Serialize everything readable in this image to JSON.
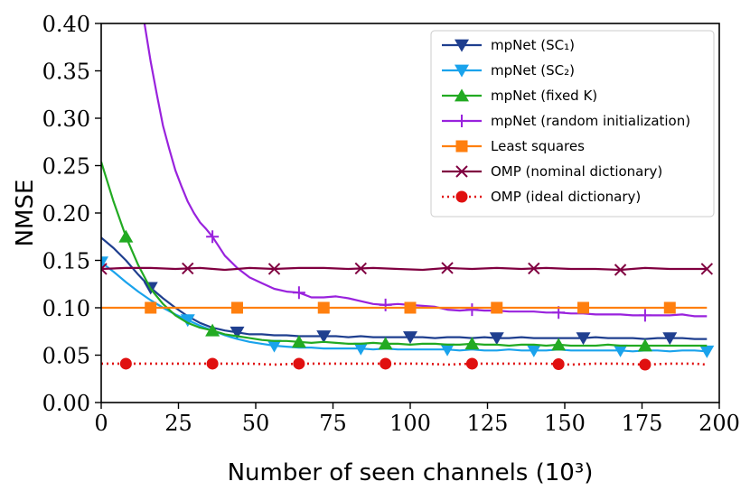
{
  "chart_data": {
    "type": "line",
    "xlabel": "Number of seen channels (10³)",
    "ylabel": "NMSE",
    "xlim": [
      0,
      200
    ],
    "ylim": [
      0,
      0.4
    ],
    "xticks": [
      "0",
      "25",
      "50",
      "75",
      "100",
      "125",
      "150",
      "175",
      "200"
    ],
    "yticks": [
      "0.00",
      "0.05",
      "0.10",
      "0.15",
      "0.20",
      "0.25",
      "0.30",
      "0.35",
      "0.40"
    ],
    "legend_position": "top-right",
    "grid": false,
    "series": [
      {
        "name": "mpNet (SC₁)",
        "color": "#1f3f8f",
        "marker": "triangle-down",
        "x": [
          0,
          4,
          8,
          12,
          16,
          20,
          24,
          28,
          32,
          36,
          40,
          44,
          48,
          52,
          56,
          60,
          64,
          68,
          72,
          76,
          80,
          84,
          88,
          92,
          96,
          100,
          104,
          108,
          112,
          116,
          120,
          124,
          128,
          132,
          136,
          140,
          144,
          148,
          152,
          156,
          160,
          164,
          168,
          172,
          176,
          180,
          184,
          188,
          192,
          196
        ],
        "y": [
          0.174,
          0.163,
          0.15,
          0.135,
          0.121,
          0.11,
          0.1,
          0.091,
          0.084,
          0.079,
          0.076,
          0.074,
          0.072,
          0.072,
          0.071,
          0.071,
          0.07,
          0.07,
          0.07,
          0.07,
          0.069,
          0.07,
          0.069,
          0.069,
          0.069,
          0.069,
          0.069,
          0.068,
          0.069,
          0.069,
          0.068,
          0.069,
          0.068,
          0.068,
          0.069,
          0.068,
          0.068,
          0.068,
          0.068,
          0.068,
          0.069,
          0.068,
          0.068,
          0.068,
          0.067,
          0.068,
          0.068,
          0.068,
          0.067,
          0.067
        ],
        "marker_x": [
          16,
          44,
          72,
          100,
          128,
          156,
          184
        ]
      },
      {
        "name": "mpNet (SC₂)",
        "color": "#1aa3ec",
        "marker": "triangle-down",
        "x": [
          0,
          4,
          8,
          12,
          16,
          20,
          24,
          28,
          32,
          36,
          40,
          44,
          48,
          52,
          56,
          60,
          64,
          68,
          72,
          76,
          80,
          84,
          88,
          92,
          96,
          100,
          104,
          108,
          112,
          116,
          120,
          124,
          128,
          132,
          136,
          140,
          144,
          148,
          152,
          156,
          160,
          164,
          168,
          172,
          176,
          180,
          184,
          188,
          192,
          196
        ],
        "y": [
          0.148,
          0.138,
          0.127,
          0.117,
          0.108,
          0.1,
          0.093,
          0.087,
          0.081,
          0.076,
          0.071,
          0.067,
          0.064,
          0.062,
          0.06,
          0.059,
          0.058,
          0.058,
          0.057,
          0.057,
          0.057,
          0.057,
          0.056,
          0.057,
          0.056,
          0.056,
          0.056,
          0.056,
          0.056,
          0.055,
          0.056,
          0.055,
          0.055,
          0.056,
          0.055,
          0.055,
          0.055,
          0.056,
          0.055,
          0.055,
          0.055,
          0.055,
          0.055,
          0.054,
          0.055,
          0.055,
          0.054,
          0.055,
          0.055,
          0.054
        ],
        "marker_x": [
          0,
          28,
          56,
          84,
          112,
          140,
          168,
          196
        ]
      },
      {
        "name": "mpNet (fixed K)",
        "color": "#22aa22",
        "marker": "triangle-up",
        "x": [
          0,
          4,
          8,
          12,
          16,
          20,
          24,
          28,
          32,
          36,
          40,
          44,
          48,
          52,
          56,
          60,
          64,
          68,
          72,
          76,
          80,
          84,
          88,
          92,
          96,
          100,
          104,
          108,
          112,
          116,
          120,
          124,
          128,
          132,
          136,
          140,
          144,
          148,
          152,
          156,
          160,
          164,
          168,
          172,
          176,
          180,
          184,
          188,
          192,
          196
        ],
        "y": [
          0.254,
          0.212,
          0.175,
          0.145,
          0.12,
          0.104,
          0.092,
          0.084,
          0.079,
          0.076,
          0.072,
          0.07,
          0.068,
          0.066,
          0.065,
          0.065,
          0.064,
          0.063,
          0.064,
          0.063,
          0.062,
          0.062,
          0.063,
          0.062,
          0.062,
          0.061,
          0.062,
          0.062,
          0.061,
          0.061,
          0.062,
          0.061,
          0.061,
          0.06,
          0.061,
          0.061,
          0.06,
          0.061,
          0.06,
          0.06,
          0.06,
          0.061,
          0.06,
          0.06,
          0.06,
          0.06,
          0.06,
          0.06,
          0.06,
          0.06
        ],
        "marker_x": [
          8,
          36,
          64,
          92,
          120,
          148,
          176
        ]
      },
      {
        "name": "mpNet (random initialization)",
        "color": "#9922dd",
        "marker": "plus",
        "x": [
          14,
          16,
          18,
          20,
          22,
          24,
          26,
          28,
          30,
          32,
          34,
          36,
          38,
          40,
          44,
          48,
          52,
          56,
          60,
          64,
          68,
          72,
          76,
          80,
          84,
          88,
          92,
          96,
          100,
          104,
          108,
          112,
          116,
          120,
          124,
          128,
          132,
          136,
          140,
          144,
          148,
          152,
          156,
          160,
          164,
          168,
          172,
          176,
          180,
          184,
          188,
          192,
          196
        ],
        "y": [
          0.4,
          0.36,
          0.325,
          0.292,
          0.268,
          0.245,
          0.228,
          0.212,
          0.2,
          0.19,
          0.183,
          0.175,
          0.165,
          0.155,
          0.142,
          0.132,
          0.126,
          0.12,
          0.117,
          0.116,
          0.111,
          0.111,
          0.112,
          0.11,
          0.107,
          0.104,
          0.103,
          0.104,
          0.103,
          0.102,
          0.101,
          0.098,
          0.097,
          0.098,
          0.097,
          0.097,
          0.096,
          0.096,
          0.096,
          0.095,
          0.095,
          0.094,
          0.094,
          0.093,
          0.093,
          0.093,
          0.092,
          0.092,
          0.092,
          0.092,
          0.093,
          0.091,
          0.091
        ],
        "marker_x": [
          36,
          64,
          92,
          120,
          148,
          176
        ]
      },
      {
        "name": "Least squares",
        "color": "#ff7f0e",
        "marker": "square",
        "x": [
          0,
          8,
          16,
          24,
          32,
          40,
          48,
          56,
          64,
          72,
          80,
          88,
          96,
          104,
          112,
          120,
          128,
          136,
          144,
          152,
          160,
          168,
          176,
          184,
          192,
          196
        ],
        "y": [
          0.1,
          0.1,
          0.1,
          0.1,
          0.1,
          0.1,
          0.1,
          0.1,
          0.1,
          0.1,
          0.1,
          0.1,
          0.1,
          0.1,
          0.1,
          0.1,
          0.1,
          0.1,
          0.1,
          0.1,
          0.1,
          0.1,
          0.1,
          0.1,
          0.1,
          0.1
        ],
        "marker_x": [
          16,
          44,
          72,
          100,
          128,
          156,
          184
        ]
      },
      {
        "name": "OMP (nominal dictionary)",
        "color": "#800040",
        "marker": "x",
        "x": [
          0,
          8,
          16,
          24,
          32,
          40,
          48,
          56,
          64,
          72,
          80,
          88,
          96,
          104,
          112,
          120,
          128,
          136,
          144,
          152,
          160,
          168,
          176,
          184,
          192,
          196
        ],
        "y": [
          0.141,
          0.142,
          0.142,
          0.141,
          0.142,
          0.14,
          0.142,
          0.141,
          0.142,
          0.142,
          0.141,
          0.142,
          0.141,
          0.14,
          0.142,
          0.141,
          0.142,
          0.141,
          0.142,
          0.141,
          0.141,
          0.14,
          0.142,
          0.141,
          0.141,
          0.141
        ],
        "marker_x": [
          0,
          28,
          56,
          84,
          112,
          140,
          168,
          196
        ]
      },
      {
        "name": "OMP (ideal dictionary)",
        "color": "#e01010",
        "marker": "circle",
        "dashed": true,
        "x": [
          0,
          8,
          16,
          24,
          32,
          40,
          48,
          56,
          64,
          72,
          80,
          88,
          96,
          104,
          112,
          120,
          128,
          136,
          144,
          152,
          160,
          168,
          176,
          184,
          192,
          196
        ],
        "y": [
          0.041,
          0.041,
          0.041,
          0.041,
          0.041,
          0.041,
          0.041,
          0.04,
          0.041,
          0.041,
          0.041,
          0.041,
          0.041,
          0.041,
          0.04,
          0.041,
          0.041,
          0.041,
          0.041,
          0.04,
          0.041,
          0.041,
          0.04,
          0.041,
          0.041,
          0.04
        ],
        "marker_x": [
          8,
          36,
          64,
          92,
          120,
          148,
          176
        ]
      }
    ]
  }
}
